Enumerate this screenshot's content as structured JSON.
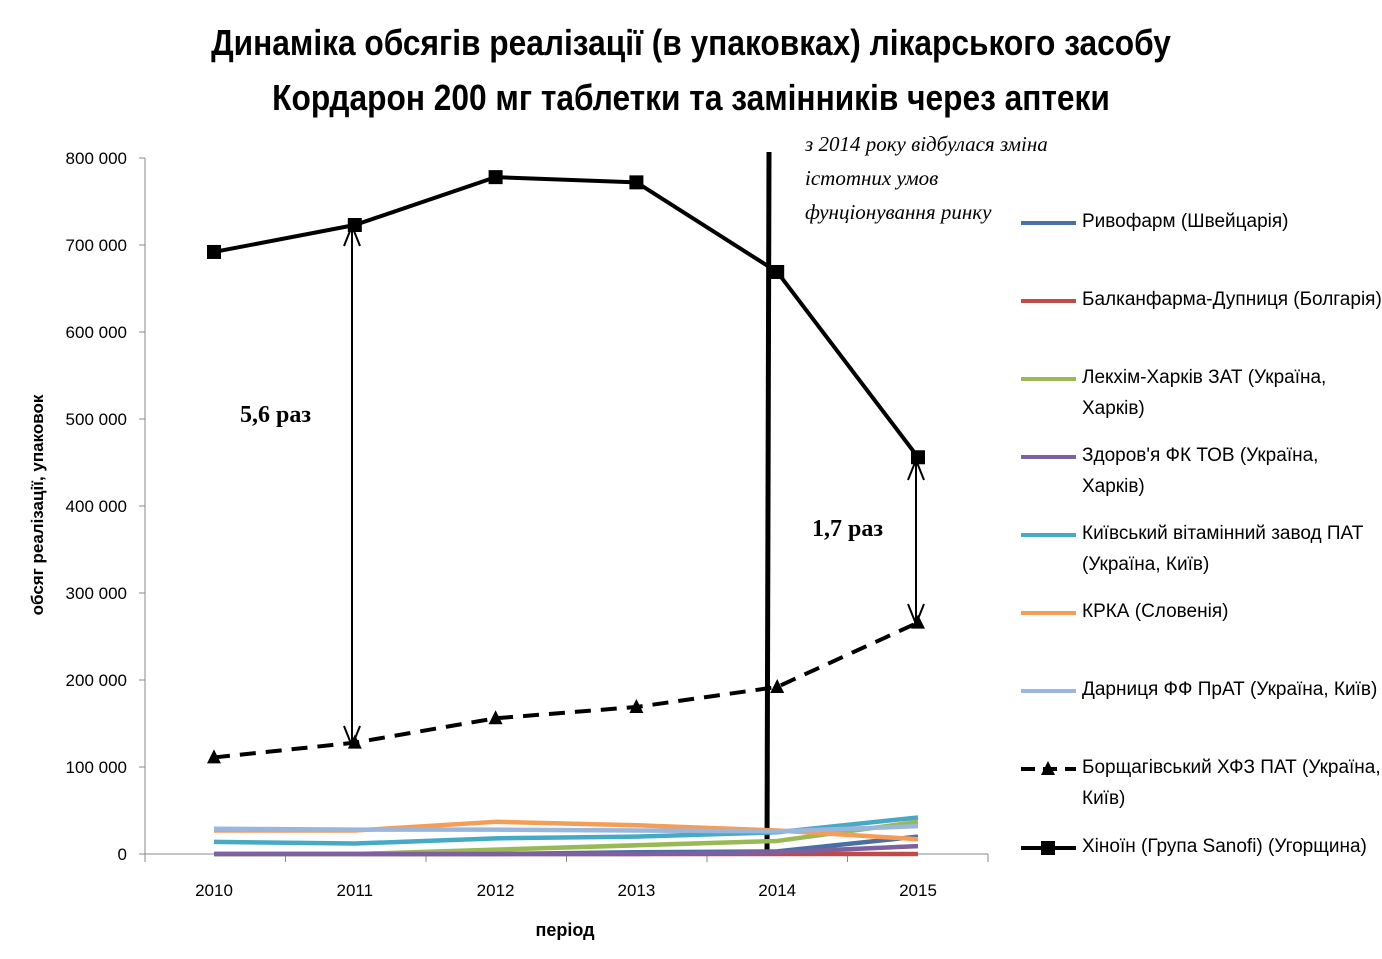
{
  "chart_data": {
    "type": "line",
    "title": [
      "Динаміка обсягів реалізації (в упаковках) лікарського засобу",
      "Кордарон 200 мг таблетки та замінників через аптеки"
    ],
    "xlabel": "період",
    "ylabel": "обсяг реалізації, упаковок",
    "ylim": [
      0,
      800000
    ],
    "yticks": [
      "0",
      "100 000",
      "200 000",
      "300 000",
      "400 000",
      "500 000",
      "600 000",
      "700 000",
      "800 000"
    ],
    "categories": [
      "2010",
      "2011",
      "2012",
      "2013",
      "2014",
      "2015"
    ],
    "legend_position": "right",
    "series": [
      {
        "name": "Ривофарм (Швейцарія)",
        "color": "#4a6fa5",
        "values": [
          0,
          0,
          0,
          2000,
          3000,
          20000
        ]
      },
      {
        "name": "Балканфарма-Дупниця (Болгарія)",
        "color": "#be4b48",
        "values": [
          0,
          0,
          0,
          0,
          0,
          0
        ]
      },
      {
        "name": "Лекхім-Харків ЗАТ (Україна, Харків)",
        "color": "#98b954",
        "values": [
          0,
          0,
          5000,
          10000,
          15000,
          37000
        ]
      },
      {
        "name": "Здоров'я ФК ТОВ (Україна, Харків)",
        "color": "#7d60a0",
        "values": [
          0,
          0,
          0,
          0,
          2000,
          9000
        ]
      },
      {
        "name": "Київський вітамінний завод ПАТ (Україна, Київ)",
        "color": "#46aac5",
        "values": [
          14000,
          12000,
          18000,
          20000,
          25000,
          42000
        ]
      },
      {
        "name": "КРКА  (Словенія)",
        "color": "#f59d56",
        "values": [
          27000,
          27000,
          37000,
          33000,
          27000,
          17000
        ]
      },
      {
        "name": "Дарниця ФФ ПрАТ (Україна, Київ)",
        "color": "#9bb6dd",
        "values": [
          29000,
          28000,
          28000,
          27000,
          26000,
          32000
        ]
      },
      {
        "name": "Борщагівський ХФЗ ПАТ (Україна, Київ)",
        "color": "#000000",
        "dash": true,
        "marker": "triangle",
        "values": [
          111000,
          128000,
          156000,
          169000,
          192000,
          266000
        ]
      },
      {
        "name": "Хіноїн (Група Sanofi) (Угорщина)",
        "color": "#000000",
        "marker": "square",
        "values": [
          692000,
          723000,
          778000,
          772000,
          669000,
          456000
        ]
      }
    ],
    "annotations": {
      "ratio_2011": "5,6 раз",
      "ratio_2015": "1,7 раз",
      "note": [
        "з 2014 року відбулася зміна",
        "істотних  умов",
        "фунціонування ринку"
      ]
    }
  }
}
